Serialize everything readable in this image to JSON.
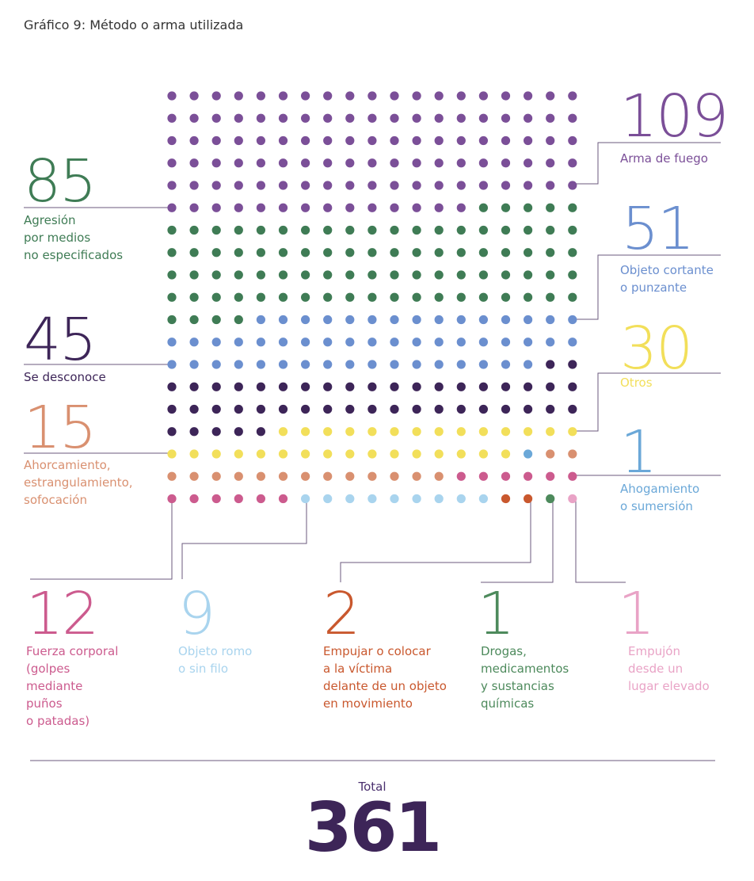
{
  "chart_data": {
    "type": "waffle",
    "title": "Gráfico 9: Método o arma utilizada",
    "series": [
      {
        "name": "Arma de fuego",
        "value": 109,
        "color": "#7b4f98"
      },
      {
        "name": "Agresión\npor medios\nno especificados",
        "value": 85,
        "color": "#3f7c55"
      },
      {
        "name": "Objeto cortante\no punzante",
        "value": 51,
        "color": "#6b8fcf"
      },
      {
        "name": "Se desconoce",
        "value": 45,
        "color": "#3d2558"
      },
      {
        "name": "Otros",
        "value": 30,
        "color": "#f2df5a"
      },
      {
        "name": "Ahogamiento\no sumersión",
        "value": 1,
        "color": "#6ba8d8"
      },
      {
        "name": "Ahorcamiento,\nestrangulamiento,\nsofocación",
        "value": 15,
        "color": "#d99070"
      },
      {
        "name": "Fuerza corporal\n(golpes\nmediante\npuños\no patadas)",
        "value": 12,
        "color": "#cc5b8e"
      },
      {
        "name": "Objeto romo\no sin filo",
        "value": 9,
        "color": "#a9d4ee"
      },
      {
        "name": "Empujar o colocar\na la víctima\ndelante de un objeto\nen movimiento",
        "value": 2,
        "color": "#c9582e"
      },
      {
        "name": "Drogas,\nmedicamentos\ny sustancias\nquímicas",
        "value": 1,
        "color": "#4d8a5c"
      },
      {
        "name": "Empujón\ndesde un\nlugar elevado",
        "value": 1,
        "color": "#e9a3c6"
      }
    ],
    "total_label": "Total",
    "total": 361
  }
}
